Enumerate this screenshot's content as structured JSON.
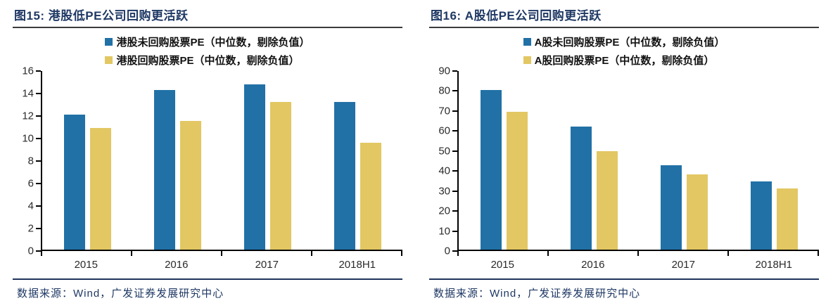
{
  "colors": {
    "bar_blue": "#2171A6",
    "bar_yellow": "#E2C763",
    "heading_navy": "#1F3864",
    "axis_black": "#000000"
  },
  "panels": [
    {
      "source": "数据来源：Wind，广发证券发展研究中心"
    },
    {
      "source": "数据来源：Wind，广发证券发展研究中心"
    }
  ],
  "chart_data": [
    {
      "type": "bar",
      "title": "图15: 港股低PE公司回购更活跃",
      "categories": [
        "2015",
        "2016",
        "2017",
        "2018H1"
      ],
      "series": [
        {
          "name": "港股未回购股票PE（中位数，剔除负值）",
          "color": "#2171A6",
          "values": [
            12.1,
            14.3,
            14.8,
            13.2
          ]
        },
        {
          "name": "港股回购股票PE（中位数，剔除负值）",
          "color": "#E2C763",
          "values": [
            10.9,
            11.5,
            13.2,
            9.6
          ]
        }
      ],
      "xlabel": "",
      "ylabel": "",
      "ylim": [
        0,
        16
      ],
      "ytick_step": 2,
      "grid": false,
      "legend_position": "top"
    },
    {
      "type": "bar",
      "title": "图16: A股低PE公司回购更活跃",
      "categories": [
        "2015",
        "2016",
        "2017",
        "2018H1"
      ],
      "series": [
        {
          "name": "A股未回购股票PE（中位数，剔除负值）",
          "color": "#2171A6",
          "values": [
            80.5,
            62,
            42.5,
            34.5
          ]
        },
        {
          "name": "A股回购股票PE（中位数，剔除负值）",
          "color": "#E2C763",
          "values": [
            69.5,
            49.5,
            38,
            31
          ]
        }
      ],
      "xlabel": "",
      "ylabel": "",
      "ylim": [
        0,
        90
      ],
      "ytick_step": 10,
      "grid": false,
      "legend_position": "top"
    }
  ]
}
